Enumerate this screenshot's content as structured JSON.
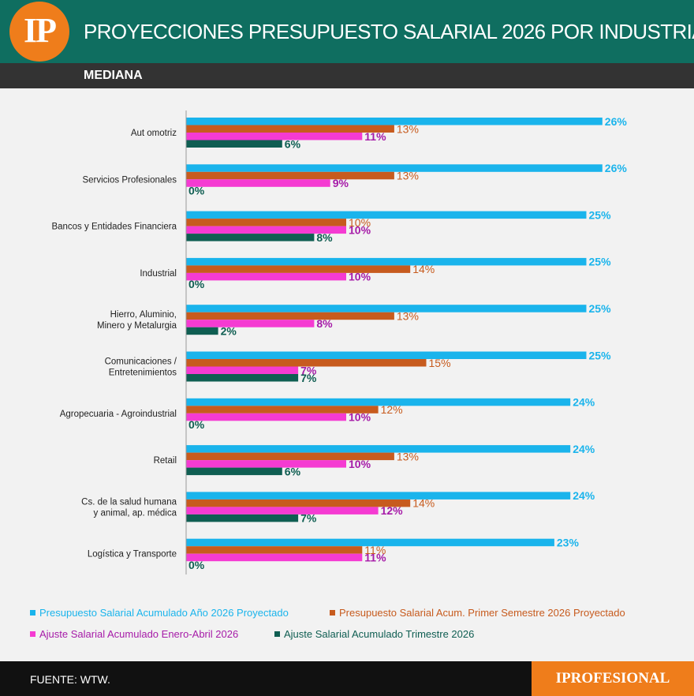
{
  "header": {
    "logo": "IP",
    "title": "PROYECCIONES PRESUPUESTO SALARIAL 2026 POR INDUSTRIA",
    "subtitle": "MEDIANA"
  },
  "chart_data": {
    "type": "bar",
    "orientation": "horizontal",
    "categories": [
      "Aut omotriz",
      "Servicios Profesionales",
      "Bancos y Entidades Financiera",
      "Industrial",
      "Hierro, Aluminio,\nMinero y Metalurgia",
      "Comunicaciones /\nEntretenimientos",
      "Agropecuaria - Agroindustrial",
      "Retail",
      "Cs. de la salud humana\ny animal, ap. médica",
      "Logística y Transporte"
    ],
    "series": [
      {
        "name": "Presupuesto Salarial Acumulado Año 2026 Proyectado",
        "color": "#1ab4ec",
        "values": [
          26,
          26,
          25,
          25,
          25,
          25,
          24,
          24,
          24,
          23
        ]
      },
      {
        "name": "Presupuesto Salarial Acum. Primer Semestre 2026 Proyectado",
        "color": "#c75b1e",
        "values": [
          13,
          13,
          10,
          14,
          13,
          15,
          12,
          13,
          14,
          11
        ]
      },
      {
        "name": "Ajuste Salarial Acumulado Enero-Abril 2026",
        "color": "#f53bd2",
        "label_color": "#a61ba8",
        "values": [
          11,
          9,
          10,
          10,
          8,
          7,
          10,
          10,
          12,
          11
        ]
      },
      {
        "name": "Ajuste Salarial Acumulado Trimestre 2026",
        "color": "#0f5e52",
        "values": [
          6,
          0,
          8,
          0,
          2,
          7,
          0,
          6,
          7,
          0
        ]
      }
    ],
    "value_suffix": "%",
    "title": "",
    "xlabel": "",
    "ylabel": "",
    "grid": false,
    "legend_position": "bottom"
  },
  "footer": {
    "source": "FUENTE: WTW.",
    "brand": "IPROFESIONAL"
  }
}
